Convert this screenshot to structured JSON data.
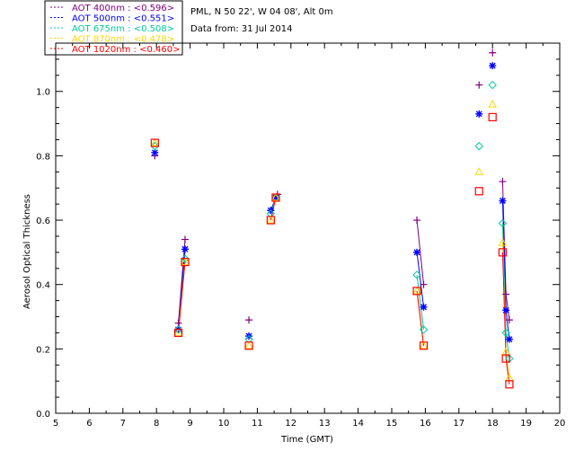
{
  "chart_data": {
    "type": "scatter",
    "header": {
      "station": "PML, N 50 22', W 04 08', Alt 0m",
      "date_line": "Data from: 31 Jul 2014"
    },
    "xlabel": "Time (GMT)",
    "ylabel": "Aerosol Optical Thickness",
    "xlim": [
      5,
      20
    ],
    "ylim": [
      0,
      1.15
    ],
    "x_ticks": [
      "5",
      "6",
      "7",
      "8",
      "9",
      "10",
      "11",
      "12",
      "13",
      "14",
      "15",
      "16",
      "17",
      "18",
      "19",
      "20"
    ],
    "y_ticks": [
      "0.0",
      "0.2",
      "0.4",
      "0.6",
      "0.8",
      "1.0"
    ],
    "legend_position": "top-left",
    "series": [
      {
        "name": "AOT  400nm : <0.596>",
        "color": "#800080",
        "marker": "plus",
        "points": [
          [
            7.95,
            0.8
          ],
          [
            8.65,
            0.28
          ],
          [
            8.85,
            0.54
          ],
          [
            10.75,
            0.29
          ],
          [
            11.4,
            0.63
          ],
          [
            11.6,
            0.68
          ],
          [
            15.75,
            0.6
          ],
          [
            15.95,
            0.4
          ],
          [
            17.6,
            1.02
          ],
          [
            18.0,
            1.12
          ],
          [
            18.3,
            0.72
          ],
          [
            18.4,
            0.37
          ],
          [
            18.5,
            0.29
          ]
        ],
        "segments": [
          [
            [
              8.65,
              0.28
            ],
            [
              8.85,
              0.54
            ]
          ],
          [
            [
              11.4,
              0.63
            ],
            [
              11.6,
              0.68
            ]
          ],
          [
            [
              15.75,
              0.6
            ],
            [
              15.95,
              0.4
            ]
          ],
          [
            [
              18.3,
              0.72
            ],
            [
              18.4,
              0.37
            ],
            [
              18.5,
              0.29
            ]
          ]
        ]
      },
      {
        "name": "AOT  500nm : <0.551>",
        "color": "#0000FF",
        "marker": "asterisk",
        "points": [
          [
            7.95,
            0.81
          ],
          [
            8.65,
            0.26
          ],
          [
            8.85,
            0.51
          ],
          [
            10.75,
            0.24
          ],
          [
            11.4,
            0.63
          ],
          [
            11.55,
            0.67
          ],
          [
            15.75,
            0.5
          ],
          [
            15.95,
            0.33
          ],
          [
            17.6,
            0.93
          ],
          [
            18.0,
            1.08
          ],
          [
            18.3,
            0.66
          ],
          [
            18.4,
            0.32
          ],
          [
            18.5,
            0.23
          ]
        ],
        "segments": [
          [
            [
              8.65,
              0.26
            ],
            [
              8.85,
              0.51
            ]
          ],
          [
            [
              11.4,
              0.63
            ],
            [
              11.55,
              0.67
            ]
          ],
          [
            [
              15.75,
              0.5
            ],
            [
              15.95,
              0.33
            ]
          ],
          [
            [
              18.3,
              0.66
            ],
            [
              18.4,
              0.32
            ],
            [
              18.5,
              0.23
            ]
          ]
        ]
      },
      {
        "name": "AOT  675nm : <0.508>",
        "color": "#00C8A0",
        "marker": "diamond",
        "points": [
          [
            7.95,
            0.83
          ],
          [
            8.65,
            0.26
          ],
          [
            8.85,
            0.48
          ],
          [
            10.75,
            0.23
          ],
          [
            11.4,
            0.62
          ],
          [
            11.55,
            0.67
          ],
          [
            15.75,
            0.43
          ],
          [
            15.95,
            0.26
          ],
          [
            17.6,
            0.83
          ],
          [
            18.0,
            1.02
          ],
          [
            18.3,
            0.59
          ],
          [
            18.4,
            0.25
          ],
          [
            18.5,
            0.17
          ]
        ],
        "segments": [
          [
            [
              8.65,
              0.26
            ],
            [
              8.85,
              0.48
            ]
          ],
          [
            [
              11.4,
              0.62
            ],
            [
              11.55,
              0.67
            ]
          ],
          [
            [
              15.75,
              0.43
            ],
            [
              15.95,
              0.26
            ]
          ],
          [
            [
              18.3,
              0.59
            ],
            [
              18.4,
              0.25
            ],
            [
              18.5,
              0.17
            ]
          ]
        ]
      },
      {
        "name": "AOT  870nm : <0.478>",
        "color": "#FFD700",
        "marker": "triangle",
        "points": [
          [
            7.95,
            0.84
          ],
          [
            8.65,
            0.25
          ],
          [
            8.85,
            0.47
          ],
          [
            10.75,
            0.21
          ],
          [
            11.4,
            0.6
          ],
          [
            11.55,
            0.67
          ],
          [
            15.75,
            0.38
          ],
          [
            15.95,
            0.21
          ],
          [
            17.6,
            0.75
          ],
          [
            18.0,
            0.96
          ],
          [
            18.3,
            0.53
          ],
          [
            18.4,
            0.19
          ],
          [
            18.5,
            0.11
          ]
        ],
        "segments": [
          [
            [
              8.65,
              0.25
            ],
            [
              8.85,
              0.47
            ]
          ],
          [
            [
              11.4,
              0.6
            ],
            [
              11.55,
              0.67
            ]
          ],
          [
            [
              15.75,
              0.38
            ],
            [
              15.95,
              0.21
            ]
          ],
          [
            [
              18.3,
              0.53
            ],
            [
              18.4,
              0.19
            ],
            [
              18.5,
              0.11
            ]
          ]
        ]
      },
      {
        "name": "AOT 1020nm : <0.460>",
        "color": "#FF0000",
        "marker": "square",
        "points": [
          [
            7.95,
            0.84
          ],
          [
            8.65,
            0.25
          ],
          [
            8.85,
            0.47
          ],
          [
            10.75,
            0.21
          ],
          [
            11.4,
            0.6
          ],
          [
            11.55,
            0.67
          ],
          [
            15.75,
            0.38
          ],
          [
            15.95,
            0.21
          ],
          [
            17.6,
            0.69
          ],
          [
            18.0,
            0.92
          ],
          [
            18.3,
            0.5
          ],
          [
            18.4,
            0.17
          ],
          [
            18.5,
            0.09
          ]
        ],
        "segments": [
          [
            [
              8.65,
              0.25
            ],
            [
              8.85,
              0.47
            ]
          ],
          [
            [
              11.4,
              0.6
            ],
            [
              11.55,
              0.67
            ]
          ],
          [
            [
              15.75,
              0.38
            ],
            [
              15.95,
              0.21
            ]
          ],
          [
            [
              18.3,
              0.5
            ],
            [
              18.4,
              0.17
            ],
            [
              18.5,
              0.09
            ]
          ]
        ]
      }
    ]
  }
}
